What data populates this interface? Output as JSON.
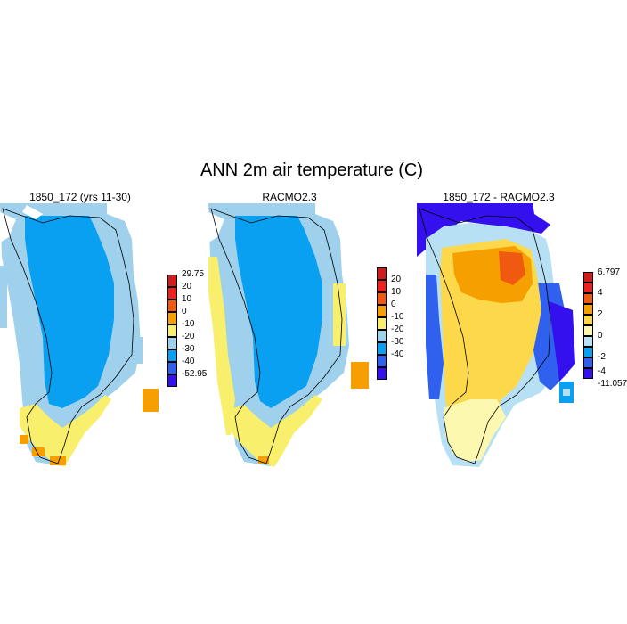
{
  "title": "ANN 2m air temperature (C)",
  "panels": [
    {
      "id": "model",
      "title": "1850_172 (yrs 11-30)",
      "colorbar": {
        "labels": [
          "29.75",
          "20",
          "10",
          "0",
          "-10",
          "-20",
          "-30",
          "-40",
          "-52.95"
        ],
        "colors": [
          "#d01c1c",
          "#ee2020",
          "#f05a10",
          "#f5a000",
          "#f8ef6c",
          "#9fd0ec",
          "#0aa0f2",
          "#2f60ee",
          "#3410ee"
        ]
      }
    },
    {
      "id": "obs",
      "title": "RACMO2.3",
      "colorbar": {
        "labels": [
          "20",
          "10",
          "0",
          "-10",
          "-20",
          "-30",
          "-40"
        ],
        "colors": [
          "#d01c1c",
          "#ee2020",
          "#f05a10",
          "#f5a000",
          "#f8ef6c",
          "#9fd0ec",
          "#0aa0f2",
          "#2f60ee",
          "#3410ee"
        ]
      }
    },
    {
      "id": "diff",
      "title": "1850_172 - RACMO2.3",
      "colorbar": {
        "labels": [
          "6.797",
          "4",
          "2",
          "0",
          "-2",
          "-4",
          "-11.057"
        ],
        "colors": [
          "#d01c1c",
          "#ee2020",
          "#f05a10",
          "#f5a000",
          "#fcd84a",
          "#fcf8b0",
          "#b8e0f4",
          "#0aa0f2",
          "#2f60ee",
          "#3410ee"
        ]
      }
    }
  ],
  "colors": {
    "land_outline": "#000000",
    "background": "#ffffff"
  }
}
